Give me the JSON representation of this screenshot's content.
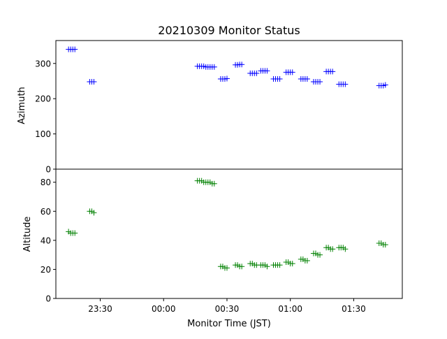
{
  "chart_data": [
    {
      "type": "scatter",
      "title": "20210309 Monitor Status",
      "xlabel": "",
      "ylabel": "Azimuth",
      "xlim": [
        "23:09",
        "01:53"
      ],
      "ylim": [
        0,
        365
      ],
      "yticks": [
        0,
        100,
        200,
        300
      ],
      "marker": "+",
      "color": "#0000ff",
      "grid": false,
      "series": [
        {
          "x": [
            "23:15",
            "23:16",
            "23:17",
            "23:18",
            "23:25",
            "23:26",
            "23:27",
            "00:16",
            "00:17",
            "00:18",
            "00:19",
            "00:20",
            "00:21",
            "00:22",
            "00:23",
            "00:24",
            "00:27",
            "00:28",
            "00:29",
            "00:30",
            "00:34",
            "00:35",
            "00:36",
            "00:37",
            "00:41",
            "00:42",
            "00:43",
            "00:44",
            "00:46",
            "00:47",
            "00:48",
            "00:49",
            "00:52",
            "00:53",
            "00:54",
            "00:55",
            "00:58",
            "00:59",
            "01:00",
            "01:01",
            "01:05",
            "01:06",
            "01:07",
            "01:08",
            "01:11",
            "01:12",
            "01:13",
            "01:14",
            "01:17",
            "01:18",
            "01:19",
            "01:20",
            "01:23",
            "01:24",
            "01:25",
            "01:26",
            "01:42",
            "01:43",
            "01:44",
            "01:45"
          ],
          "y": [
            340,
            340,
            340,
            340,
            248,
            248,
            248,
            292,
            292,
            292,
            292,
            290,
            290,
            290,
            290,
            290,
            256,
            256,
            256,
            257,
            296,
            296,
            297,
            297,
            272,
            272,
            272,
            272,
            279,
            279,
            279,
            279,
            256,
            256,
            256,
            256,
            275,
            275,
            275,
            275,
            256,
            256,
            256,
            256,
            248,
            248,
            248,
            248,
            277,
            277,
            277,
            277,
            241,
            241,
            241,
            241,
            237,
            237,
            237,
            239
          ]
        }
      ]
    },
    {
      "type": "scatter",
      "title": "",
      "xlabel": "Monitor Time (JST)",
      "ylabel": "Altitude",
      "xlim": [
        "23:09",
        "01:53"
      ],
      "ylim": [
        0,
        89
      ],
      "yticks": [
        0,
        20,
        40,
        60,
        80
      ],
      "xticks": [
        "23:30",
        "00:00",
        "00:30",
        "01:00",
        "01:30"
      ],
      "marker": "+",
      "color": "#008000",
      "grid": false,
      "series": [
        {
          "x": [
            "23:15",
            "23:16",
            "23:17",
            "23:18",
            "23:25",
            "23:26",
            "23:27",
            "00:16",
            "00:17",
            "00:18",
            "00:19",
            "00:20",
            "00:21",
            "00:22",
            "00:23",
            "00:24",
            "00:27",
            "00:28",
            "00:29",
            "00:30",
            "00:34",
            "00:35",
            "00:36",
            "00:37",
            "00:41",
            "00:42",
            "00:43",
            "00:44",
            "00:46",
            "00:47",
            "00:48",
            "00:49",
            "00:52",
            "00:53",
            "00:54",
            "00:55",
            "00:58",
            "00:59",
            "01:00",
            "01:01",
            "01:05",
            "01:06",
            "01:07",
            "01:08",
            "01:11",
            "01:12",
            "01:13",
            "01:14",
            "01:17",
            "01:18",
            "01:19",
            "01:20",
            "01:23",
            "01:24",
            "01:25",
            "01:26",
            "01:42",
            "01:43",
            "01:44",
            "01:45"
          ],
          "y": [
            46,
            45,
            45,
            45,
            60,
            60,
            59,
            81,
            81,
            81,
            80,
            80,
            80,
            80,
            79,
            79,
            22,
            22,
            21,
            21,
            23,
            23,
            22,
            22,
            24,
            24,
            23,
            23,
            23,
            23,
            23,
            22,
            23,
            23,
            23,
            23,
            25,
            25,
            24,
            24,
            27,
            27,
            26,
            26,
            31,
            31,
            30,
            30,
            35,
            35,
            34,
            34,
            35,
            35,
            35,
            34,
            38,
            38,
            37,
            37
          ]
        }
      ]
    }
  ]
}
